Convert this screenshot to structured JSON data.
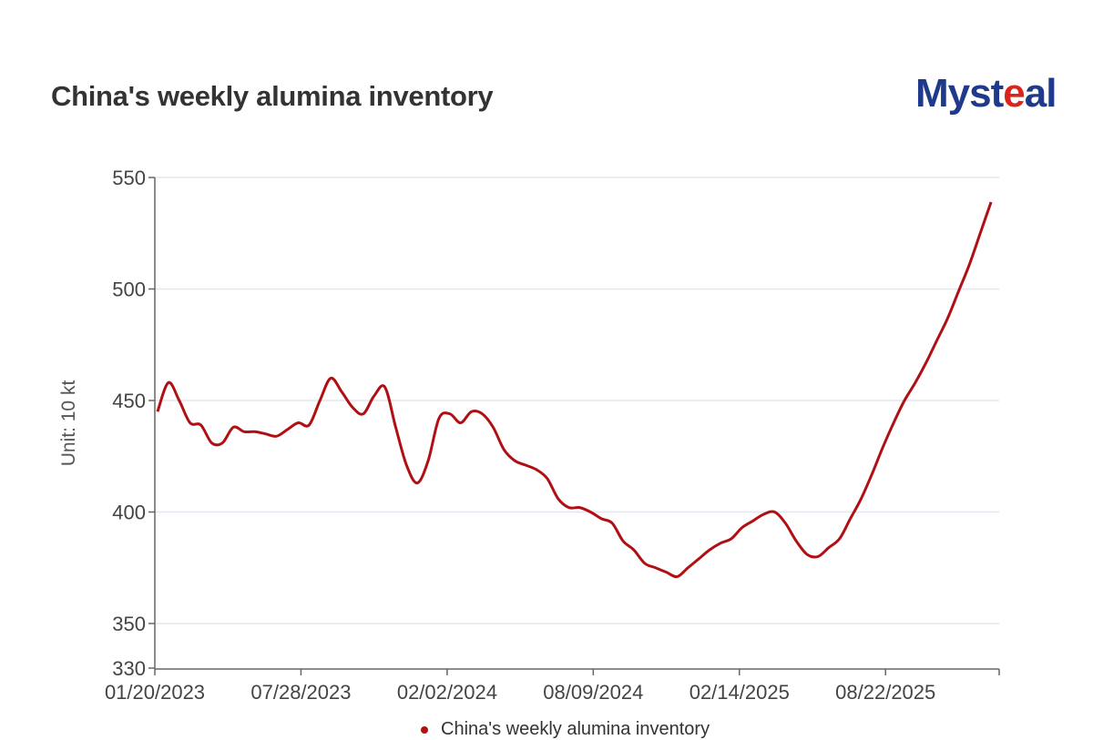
{
  "header": {
    "title": "China's weekly alumina inventory",
    "logo_text": "Mysteal"
  },
  "chart_data": {
    "type": "line",
    "title": "China's weekly alumina inventory",
    "ylabel": "Unit: 10 kt",
    "xlabel": "",
    "ylim": [
      330,
      550
    ],
    "yticks": [
      330,
      350,
      400,
      450,
      500,
      550
    ],
    "xticks": [
      {
        "week": 0,
        "label": "01/20/2023"
      },
      {
        "week": 27,
        "label": "07/28/2023"
      },
      {
        "week": 54,
        "label": "02/02/2024"
      },
      {
        "week": 81,
        "label": "08/09/2024"
      },
      {
        "week": 108,
        "label": "02/14/2025"
      },
      {
        "week": 135,
        "label": "08/22/2025"
      }
    ],
    "xlim_weeks": [
      0,
      156
    ],
    "grid": true,
    "legend_position": "bottom",
    "series": [
      {
        "name": "China's weekly alumina inventory",
        "color": "#b00f14",
        "week_step": 2,
        "values": [
          445,
          458,
          450,
          440,
          439,
          431,
          431,
          438,
          436,
          436,
          435,
          434,
          437,
          440,
          439,
          450,
          460,
          454,
          447,
          444,
          452,
          456,
          438,
          421,
          413,
          423,
          442,
          444,
          440,
          445,
          444,
          438,
          428,
          423,
          421,
          419,
          415,
          406,
          402,
          402,
          400,
          397,
          395,
          387,
          383,
          377,
          375,
          373,
          371,
          375,
          379,
          383,
          386,
          388,
          393,
          396,
          399,
          400,
          395,
          387,
          381,
          380,
          384,
          388,
          397,
          406,
          417,
          429,
          440,
          450,
          458,
          467,
          477,
          487,
          499,
          511,
          525,
          539
        ]
      }
    ]
  }
}
